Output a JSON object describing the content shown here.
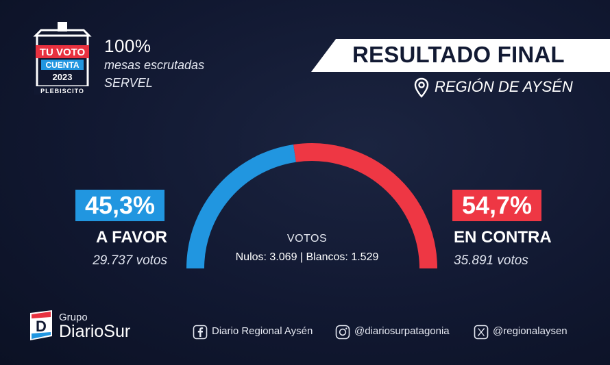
{
  "logo": {
    "line1": "TU VOTO",
    "line2": "CUENTA",
    "year": "2023",
    "subtitle": "PLEBISCITO",
    "colors": {
      "red": "#e8313f",
      "blue": "#2196e0"
    }
  },
  "mesas": {
    "percent": "100%",
    "line1": "mesas escrutadas",
    "line2": "SERVEL"
  },
  "header": {
    "title": "RESULTADO FINAL",
    "region": "REGIÓN DE AYSÉN",
    "region_icon": "map-pin-icon"
  },
  "chart_data": {
    "type": "pie",
    "style": "semicircle-gauge",
    "categories": [
      "A FAVOR",
      "EN CONTRA"
    ],
    "values": [
      45.3,
      54.7
    ],
    "percent_labels": [
      "45,3%",
      "54,7%"
    ],
    "votes_labels": [
      "29.737 votos",
      "35.891 votos"
    ],
    "colors": [
      "#2196e0",
      "#ee3744"
    ]
  },
  "center": {
    "title": "VOTOS",
    "detail": "Nulos: 3.069 | Blancos: 1.529"
  },
  "footer": {
    "brand_small": "Grupo",
    "brand_large": "DiarioSur",
    "social": [
      {
        "icon": "facebook-icon",
        "text": "Diario Regional Aysén"
      },
      {
        "icon": "instagram-icon",
        "text": "@diariosurpatagonia"
      },
      {
        "icon": "x-twitter-icon",
        "text": "@regionalaysen"
      }
    ]
  }
}
